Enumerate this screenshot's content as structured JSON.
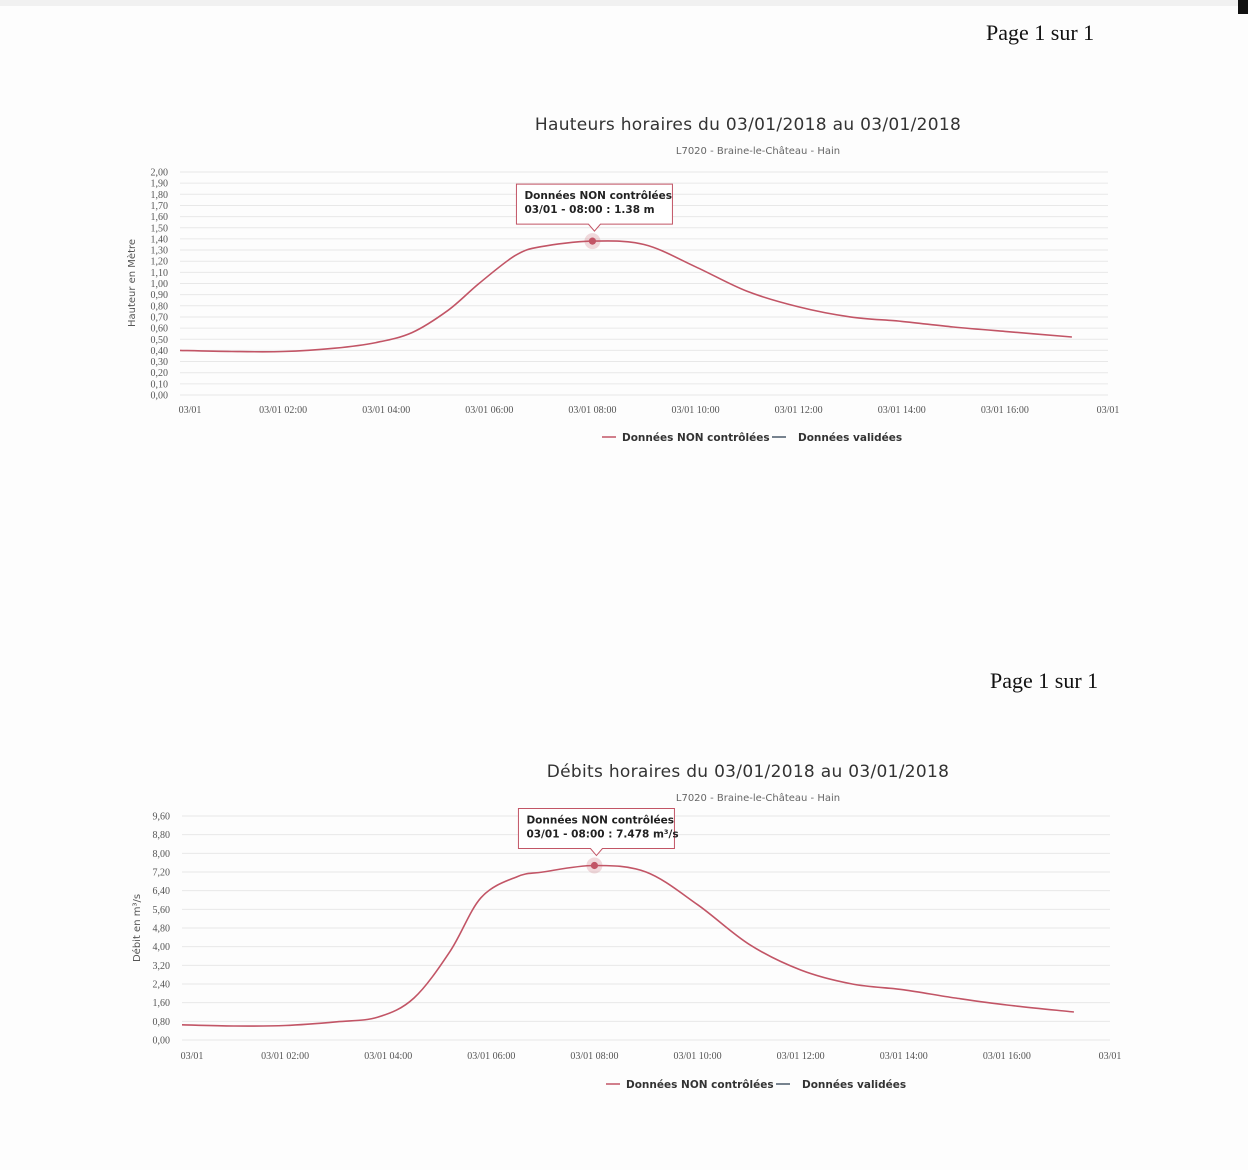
{
  "pages": [
    {
      "page_label": "Page 1 sur 1"
    },
    {
      "page_label": "Page 1 sur 1"
    }
  ],
  "colors": {
    "series_non_controlled": "#c25566",
    "series_validated": "#4a5a6a",
    "tooltip_border": "#c25566"
  },
  "chart_data": [
    {
      "type": "line",
      "title": "Hauteurs horaires du 03/01/2018 au 03/01/2018",
      "subtitle": "L7020 - Braine-le-Château - Hain",
      "ylabel": "Hauteur en Mètre",
      "xlabel": "",
      "ylim": [
        0,
        2.0
      ],
      "y_ticks": [
        "0,00",
        "0,10",
        "0,20",
        "0,30",
        "0,40",
        "0,50",
        "0,60",
        "0,70",
        "0,80",
        "0,90",
        "1,00",
        "1,10",
        "1,20",
        "1,30",
        "1,40",
        "1,50",
        "1,60",
        "1,70",
        "1,80",
        "1,90",
        "2,00"
      ],
      "x_ticks": [
        "03/01",
        "03/01 02:00",
        "03/01 04:00",
        "03/01 06:00",
        "03/01 08:00",
        "03/01 10:00",
        "03/01 12:00",
        "03/01 14:00",
        "03/01 16:00",
        "03/01"
      ],
      "x_range_hours": [
        0,
        18
      ],
      "grid": true,
      "legend": {
        "position": "bottom-center",
        "items": [
          "Données NON contrôlées",
          "Données validées"
        ]
      },
      "series": [
        {
          "name": "Données NON contrôlées",
          "x": [
            0,
            1,
            2,
            3,
            3.8,
            4.5,
            5.2,
            5.8,
            6.5,
            7,
            8,
            9,
            10,
            11,
            12,
            13,
            14,
            15,
            16,
            17.3
          ],
          "values": [
            0.4,
            0.39,
            0.39,
            0.42,
            0.47,
            0.56,
            0.76,
            1.0,
            1.25,
            1.33,
            1.38,
            1.35,
            1.15,
            0.93,
            0.79,
            0.7,
            0.66,
            0.61,
            0.57,
            0.52
          ]
        },
        {
          "name": "Données validées",
          "x": [],
          "values": []
        }
      ],
      "tooltip": {
        "line1": "Données NON contrôlées",
        "line2": "03/01 - 08:00 : 1.38 m",
        "x": 8,
        "y": 1.38
      }
    },
    {
      "type": "line",
      "title": "Débits horaires du 03/01/2018 au 03/01/2018",
      "subtitle": "L7020 - Braine-le-Château - Hain",
      "ylabel": "Débit en m³/s",
      "xlabel": "",
      "ylim": [
        0,
        9.6
      ],
      "y_ticks": [
        "0,00",
        "0,80",
        "1,60",
        "2,40",
        "3,20",
        "4,00",
        "4,80",
        "5,60",
        "6,40",
        "7,20",
        "8,00",
        "8,80",
        "9,60"
      ],
      "x_ticks": [
        "03/01",
        "03/01 02:00",
        "03/01 04:00",
        "03/01 06:00",
        "03/01 08:00",
        "03/01 10:00",
        "03/01 12:00",
        "03/01 14:00",
        "03/01 16:00",
        "03/01"
      ],
      "x_range_hours": [
        0,
        18
      ],
      "grid": true,
      "legend": {
        "position": "bottom-center",
        "items": [
          "Données NON contrôlées",
          "Données validées"
        ]
      },
      "series": [
        {
          "name": "Données NON contrôlées",
          "x": [
            0,
            1,
            2,
            3,
            3.8,
            4.5,
            5.2,
            5.8,
            6.5,
            7,
            8,
            9,
            10,
            11,
            12,
            13,
            14,
            15,
            16,
            17.3
          ],
          "values": [
            0.65,
            0.6,
            0.62,
            0.78,
            0.98,
            1.8,
            3.8,
            6.1,
            7.0,
            7.2,
            7.48,
            7.2,
            5.8,
            4.1,
            3.0,
            2.4,
            2.15,
            1.8,
            1.5,
            1.2
          ]
        },
        {
          "name": "Données validées",
          "x": [],
          "values": []
        }
      ],
      "tooltip": {
        "line1": "Données NON contrôlées",
        "line2": "03/01 - 08:00 : 7.478 m³/s",
        "x": 8,
        "y": 7.478
      }
    }
  ]
}
